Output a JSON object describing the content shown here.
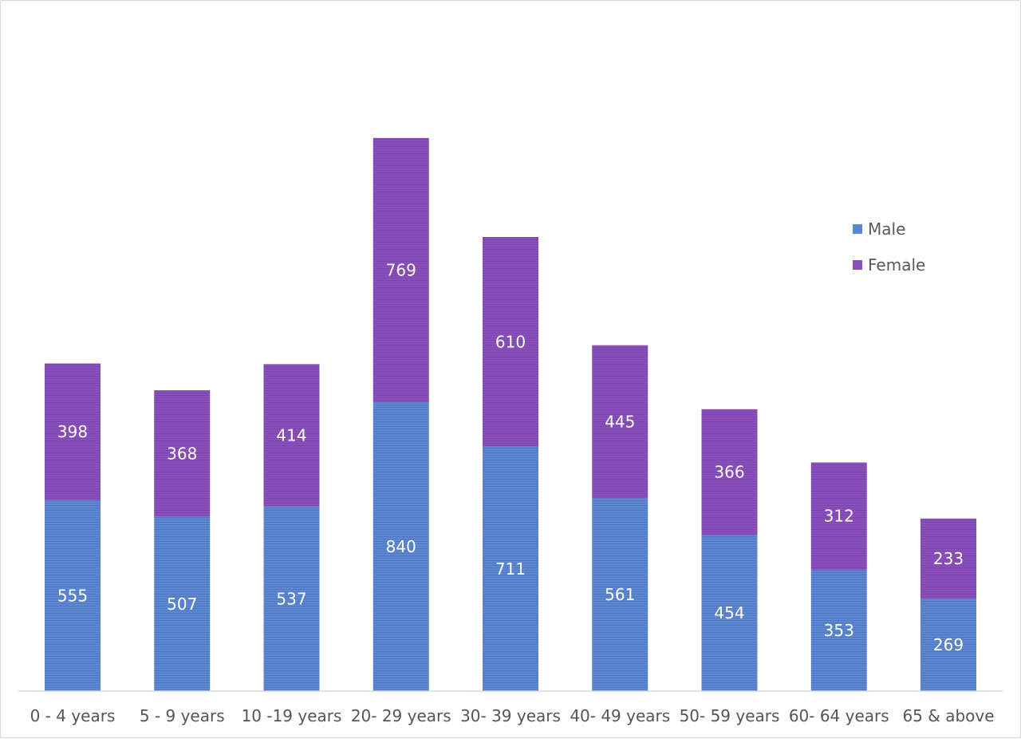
{
  "chart_data": {
    "type": "bar",
    "stacked": true,
    "title": "",
    "xlabel": "",
    "ylabel": "",
    "categories": [
      "0 - 4 years",
      "5 - 9 years",
      "10 -19 years",
      "20- 29 years",
      "30- 39 years",
      "40- 49 years",
      "50- 59 years",
      "60- 64 years",
      "65 & above"
    ],
    "series": [
      {
        "name": "Male",
        "color": "#5b87d3",
        "values": [
          555,
          507,
          537,
          840,
          711,
          561,
          454,
          353,
          269
        ]
      },
      {
        "name": "Female",
        "color": "#8a4fbd",
        "values": [
          398,
          368,
          414,
          769,
          610,
          445,
          366,
          312,
          233
        ]
      }
    ],
    "ylim": [
      0,
      1950
    ],
    "y_axis_visible": false,
    "grid": false,
    "data_labels": true,
    "legend_position": "right"
  }
}
